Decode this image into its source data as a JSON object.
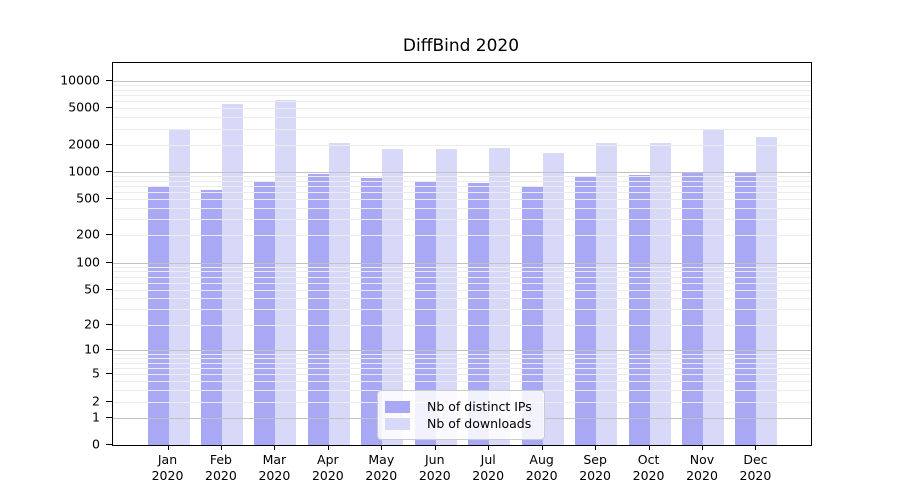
{
  "title": "DiffBind 2020",
  "legend": {
    "items": [
      {
        "label": "Nb of distinct IPs"
      },
      {
        "label": "Nb of downloads"
      }
    ]
  },
  "chart_data": {
    "type": "bar",
    "title": "DiffBind 2020",
    "categories": [
      "Jan",
      "Feb",
      "Mar",
      "Apr",
      "May",
      "Jun",
      "Jul",
      "Aug",
      "Sep",
      "Oct",
      "Nov",
      "Dec"
    ],
    "category_line2": "2020",
    "series": [
      {
        "name": "Nb of distinct IPs",
        "color": "#a8a8f5",
        "values": [
          710,
          630,
          800,
          960,
          870,
          770,
          750,
          680,
          890,
          930,
          1010,
          1010
        ]
      },
      {
        "name": "Nb of downloads",
        "color": "#d8d8f8",
        "values": [
          3000,
          5650,
          6250,
          2100,
          1800,
          1800,
          1850,
          1600,
          2100,
          2100,
          2900,
          2450
        ]
      }
    ],
    "y_ticks": [
      0,
      1,
      2,
      5,
      10,
      20,
      50,
      100,
      200,
      500,
      1000,
      2000,
      5000,
      10000
    ],
    "y_scale": "log10(1+x)",
    "ylim": [
      0,
      15800
    ],
    "xlabel": "",
    "ylabel": "",
    "grid": true,
    "legend_position": "inside-bottom-center",
    "colors": {
      "major_gridline": "#c2c2c2",
      "minor_gridline": "#ececec",
      "axis": "#000000",
      "background": "#ffffff"
    }
  }
}
